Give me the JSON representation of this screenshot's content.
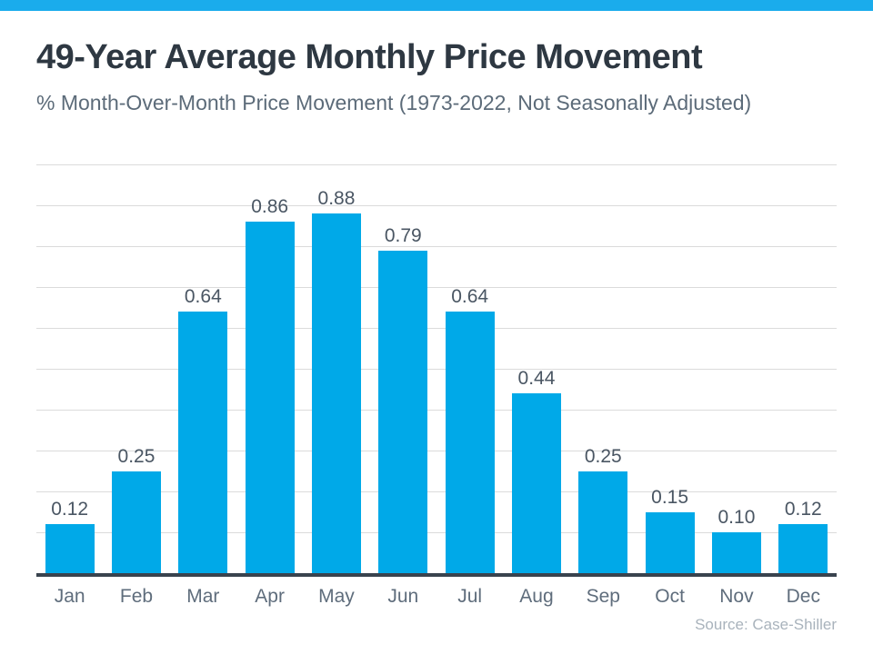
{
  "page": {
    "accent_color": "#1aacec",
    "background_color": "#ffffff"
  },
  "header": {
    "title": "49-Year Average Monthly Price Movement",
    "subtitle": "% Month-Over-Month Price Movement (1973-2022, Not Seasonally Adjusted)"
  },
  "footer": {
    "source": "Source: Case-Shiller"
  },
  "chart_data": {
    "type": "bar",
    "title": "49-Year Average Monthly Price Movement",
    "subtitle": "% Month-Over-Month Price Movement (1973-2022, Not Seasonally Adjusted)",
    "categories": [
      "Jan",
      "Feb",
      "Mar",
      "Apr",
      "May",
      "Jun",
      "Jul",
      "Aug",
      "Sep",
      "Oct",
      "Nov",
      "Dec"
    ],
    "values": [
      0.12,
      0.25,
      0.64,
      0.86,
      0.88,
      0.79,
      0.64,
      0.44,
      0.25,
      0.15,
      0.1,
      0.12
    ],
    "value_label_decimals": 2,
    "xlabel": "",
    "ylabel": "",
    "ylim": [
      0,
      1.0
    ],
    "grid_step": 0.1,
    "grid": true,
    "y_tick_labels_shown": false,
    "legend": "none",
    "bar_color": "#00a9e8",
    "axis_line_color": "#39434e",
    "gridline_color": "#dbdbdb",
    "value_label_color": "#4a5663",
    "tick_label_color": "#5f6d7c",
    "source": "Source: Case-Shiller"
  }
}
